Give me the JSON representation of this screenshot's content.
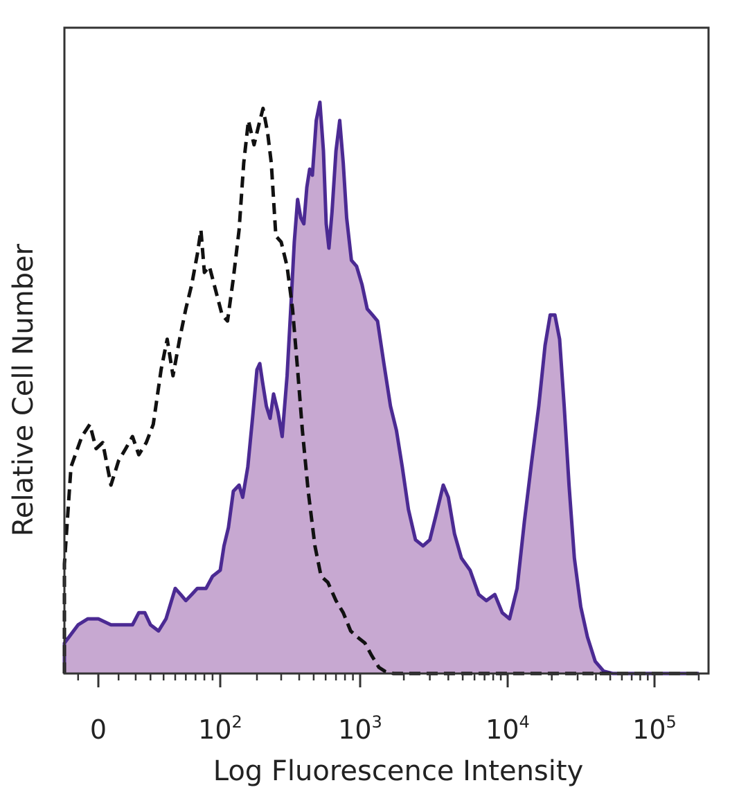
{
  "chart_data": {
    "type": "area",
    "title": "",
    "xlabel": "Log Fluorescence Intensity",
    "ylabel": "Relative Cell Number",
    "x_scale": "biexponential",
    "xlim": [
      -30,
      200000
    ],
    "ylim": [
      0,
      100
    ],
    "x_ticks": [
      {
        "value": 0,
        "label": "0",
        "sup": ""
      },
      {
        "value": 100,
        "label": "10",
        "sup": "2"
      },
      {
        "value": 1000,
        "label": "10",
        "sup": "3"
      },
      {
        "value": 10000,
        "label": "10",
        "sup": "4"
      },
      {
        "value": 100000,
        "label": "10",
        "sup": "5"
      }
    ],
    "y_ticks": [],
    "grid": false,
    "legend": "none",
    "series": [
      {
        "style": "dashed",
        "color": "#111111",
        "fill": "none",
        "points": [
          [
            -30,
            0
          ],
          [
            -22,
            18
          ],
          [
            -14,
            34
          ],
          [
            -8,
            39
          ],
          [
            -4,
            41
          ],
          [
            -1,
            37
          ],
          [
            2,
            38
          ],
          [
            6,
            31
          ],
          [
            10,
            35
          ],
          [
            14,
            37
          ],
          [
            18,
            39
          ],
          [
            22,
            36
          ],
          [
            27,
            38
          ],
          [
            32,
            41
          ],
          [
            38,
            50
          ],
          [
            43,
            55
          ],
          [
            48,
            49
          ],
          [
            54,
            55
          ],
          [
            60,
            60
          ],
          [
            66,
            64
          ],
          [
            72,
            69
          ],
          [
            76,
            73
          ],
          [
            80,
            66
          ],
          [
            86,
            67
          ],
          [
            94,
            63
          ],
          [
            104,
            59
          ],
          [
            116,
            58
          ],
          [
            130,
            65
          ],
          [
            145,
            73
          ],
          [
            158,
            84
          ],
          [
            172,
            91
          ],
          [
            190,
            87
          ],
          [
            205,
            90
          ],
          [
            222,
            93
          ],
          [
            240,
            89
          ],
          [
            255,
            84
          ],
          [
            275,
            72
          ],
          [
            300,
            71
          ],
          [
            330,
            67
          ],
          [
            360,
            60
          ],
          [
            390,
            50
          ],
          [
            420,
            40
          ],
          [
            460,
            30
          ],
          [
            510,
            21
          ],
          [
            560,
            16
          ],
          [
            620,
            15
          ],
          [
            700,
            12
          ],
          [
            780,
            10
          ],
          [
            870,
            7
          ],
          [
            960,
            6
          ],
          [
            1080,
            5
          ],
          [
            1200,
            3
          ],
          [
            1350,
            1
          ],
          [
            1500,
            0.3
          ],
          [
            1700,
            0
          ],
          [
            200000,
            0
          ]
        ]
      },
      {
        "style": "solid",
        "color": "#4b2a93",
        "fill": "#c7a8d1",
        "points": [
          [
            -30,
            0
          ],
          [
            -20,
            5
          ],
          [
            -10,
            8
          ],
          [
            -5,
            9
          ],
          [
            0,
            9
          ],
          [
            6,
            8
          ],
          [
            12,
            8
          ],
          [
            18,
            8
          ],
          [
            22,
            10
          ],
          [
            26,
            10
          ],
          [
            30,
            8
          ],
          [
            36,
            7
          ],
          [
            42,
            9
          ],
          [
            50,
            14
          ],
          [
            55,
            13
          ],
          [
            60,
            12
          ],
          [
            66,
            13
          ],
          [
            72,
            14
          ],
          [
            82,
            14
          ],
          [
            90,
            16
          ],
          [
            100,
            17
          ],
          [
            108,
            21
          ],
          [
            118,
            24
          ],
          [
            130,
            30
          ],
          [
            145,
            31
          ],
          [
            155,
            29
          ],
          [
            170,
            34
          ],
          [
            185,
            42
          ],
          [
            200,
            50
          ],
          [
            210,
            51
          ],
          [
            220,
            48
          ],
          [
            235,
            44
          ],
          [
            250,
            42
          ],
          [
            265,
            46
          ],
          [
            285,
            43
          ],
          [
            305,
            39
          ],
          [
            330,
            49
          ],
          [
            350,
            60
          ],
          [
            370,
            71
          ],
          [
            390,
            78
          ],
          [
            410,
            75
          ],
          [
            430,
            74
          ],
          [
            450,
            80
          ],
          [
            470,
            83
          ],
          [
            490,
            82
          ],
          [
            520,
            91
          ],
          [
            550,
            94
          ],
          [
            580,
            86
          ],
          [
            605,
            74
          ],
          [
            630,
            70
          ],
          [
            660,
            76
          ],
          [
            700,
            86
          ],
          [
            740,
            91
          ],
          [
            780,
            84
          ],
          [
            820,
            75
          ],
          [
            880,
            68
          ],
          [
            950,
            67
          ],
          [
            1030,
            64
          ],
          [
            1120,
            60
          ],
          [
            1220,
            59
          ],
          [
            1320,
            58
          ],
          [
            1460,
            51
          ],
          [
            1620,
            44
          ],
          [
            1780,
            40
          ],
          [
            1950,
            34
          ],
          [
            2150,
            27
          ],
          [
            2400,
            22
          ],
          [
            2700,
            21
          ],
          [
            3000,
            22
          ],
          [
            3300,
            26
          ],
          [
            3700,
            31
          ],
          [
            4000,
            29
          ],
          [
            4400,
            23
          ],
          [
            4900,
            19
          ],
          [
            5600,
            17
          ],
          [
            6400,
            13
          ],
          [
            7200,
            12
          ],
          [
            8200,
            13
          ],
          [
            9200,
            10
          ],
          [
            10300,
            9
          ],
          [
            11600,
            14
          ],
          [
            13000,
            25
          ],
          [
            14600,
            35
          ],
          [
            16300,
            44
          ],
          [
            18000,
            54
          ],
          [
            19500,
            59
          ],
          [
            21000,
            59
          ],
          [
            22600,
            55
          ],
          [
            24300,
            44
          ],
          [
            26200,
            31
          ],
          [
            28500,
            19
          ],
          [
            31500,
            11
          ],
          [
            35000,
            6
          ],
          [
            39500,
            2
          ],
          [
            45000,
            0.4
          ],
          [
            52000,
            0
          ],
          [
            200000,
            0
          ]
        ]
      }
    ]
  }
}
